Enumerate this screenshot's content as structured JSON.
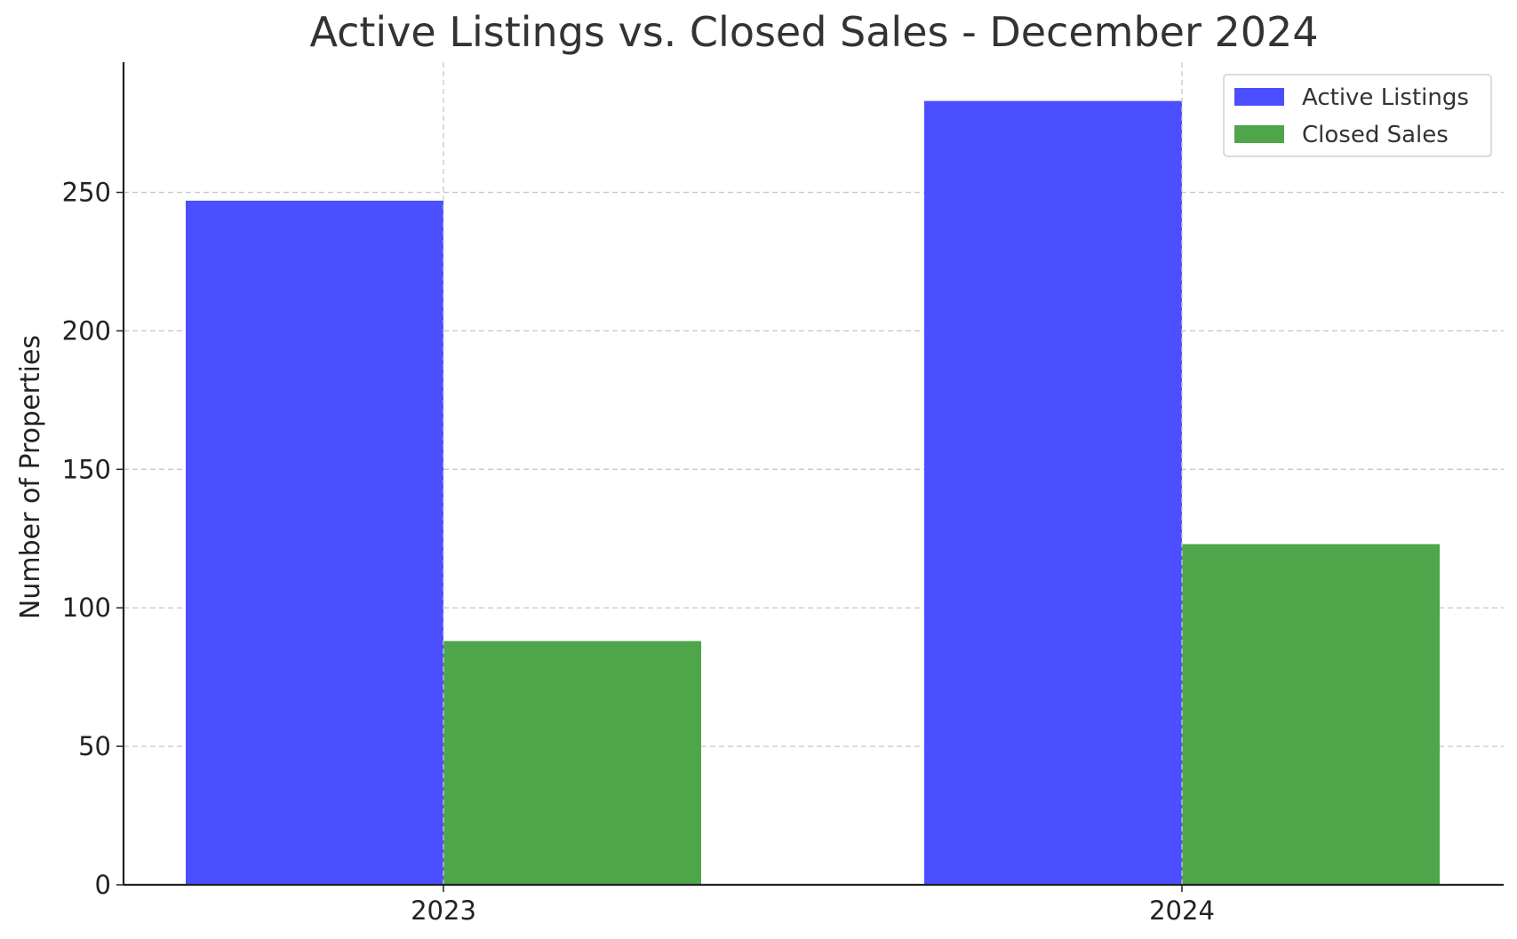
{
  "chart_data": {
    "type": "bar",
    "title": "Active Listings vs. Closed Sales - December 2024",
    "xlabel": "",
    "ylabel": "Number of Properties",
    "categories": [
      "2023",
      "2024"
    ],
    "series": [
      {
        "name": "Active Listings",
        "values": [
          247,
          283
        ],
        "color": "#4b4fff"
      },
      {
        "name": "Closed Sales",
        "values": [
          88,
          123
        ],
        "color": "#4ea54a"
      }
    ],
    "ylim": [
      0,
      297
    ],
    "yticks": [
      0,
      50,
      100,
      150,
      200,
      250
    ],
    "grid": true,
    "legend": "top-right"
  }
}
